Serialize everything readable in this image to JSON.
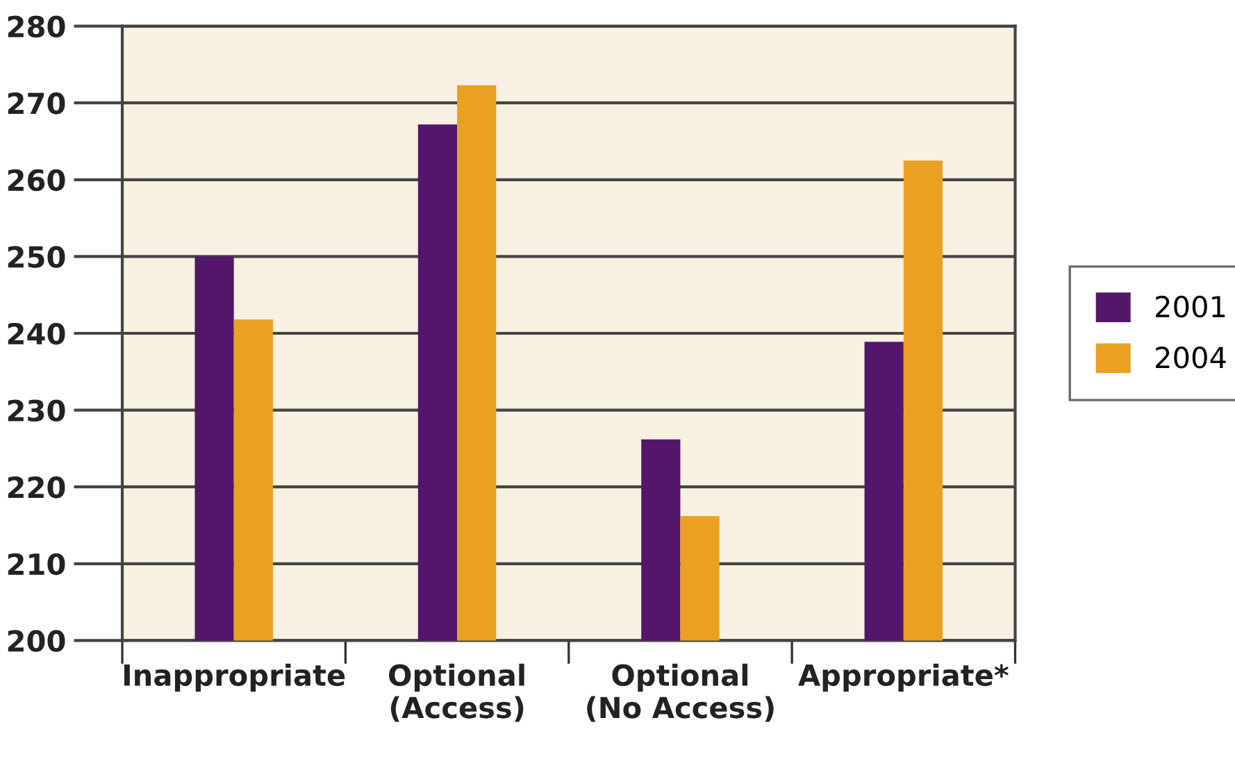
{
  "chart_data": {
    "type": "bar",
    "categories": [
      "Inappropriate",
      "Optional\n(Access)",
      "Optional\n(No Access)",
      "Appropriate*"
    ],
    "series": [
      {
        "name": "2001",
        "color": "#53166b",
        "values": [
          250.0,
          267.2,
          226.2,
          238.9
        ]
      },
      {
        "name": "2004",
        "color": "#e9a023",
        "values": [
          241.8,
          272.3,
          216.2,
          262.5
        ]
      }
    ],
    "ylim": [
      200,
      280
    ],
    "yticks": [
      200,
      210,
      220,
      230,
      240,
      250,
      260,
      270,
      280
    ],
    "grid": "y",
    "legend": "right"
  }
}
